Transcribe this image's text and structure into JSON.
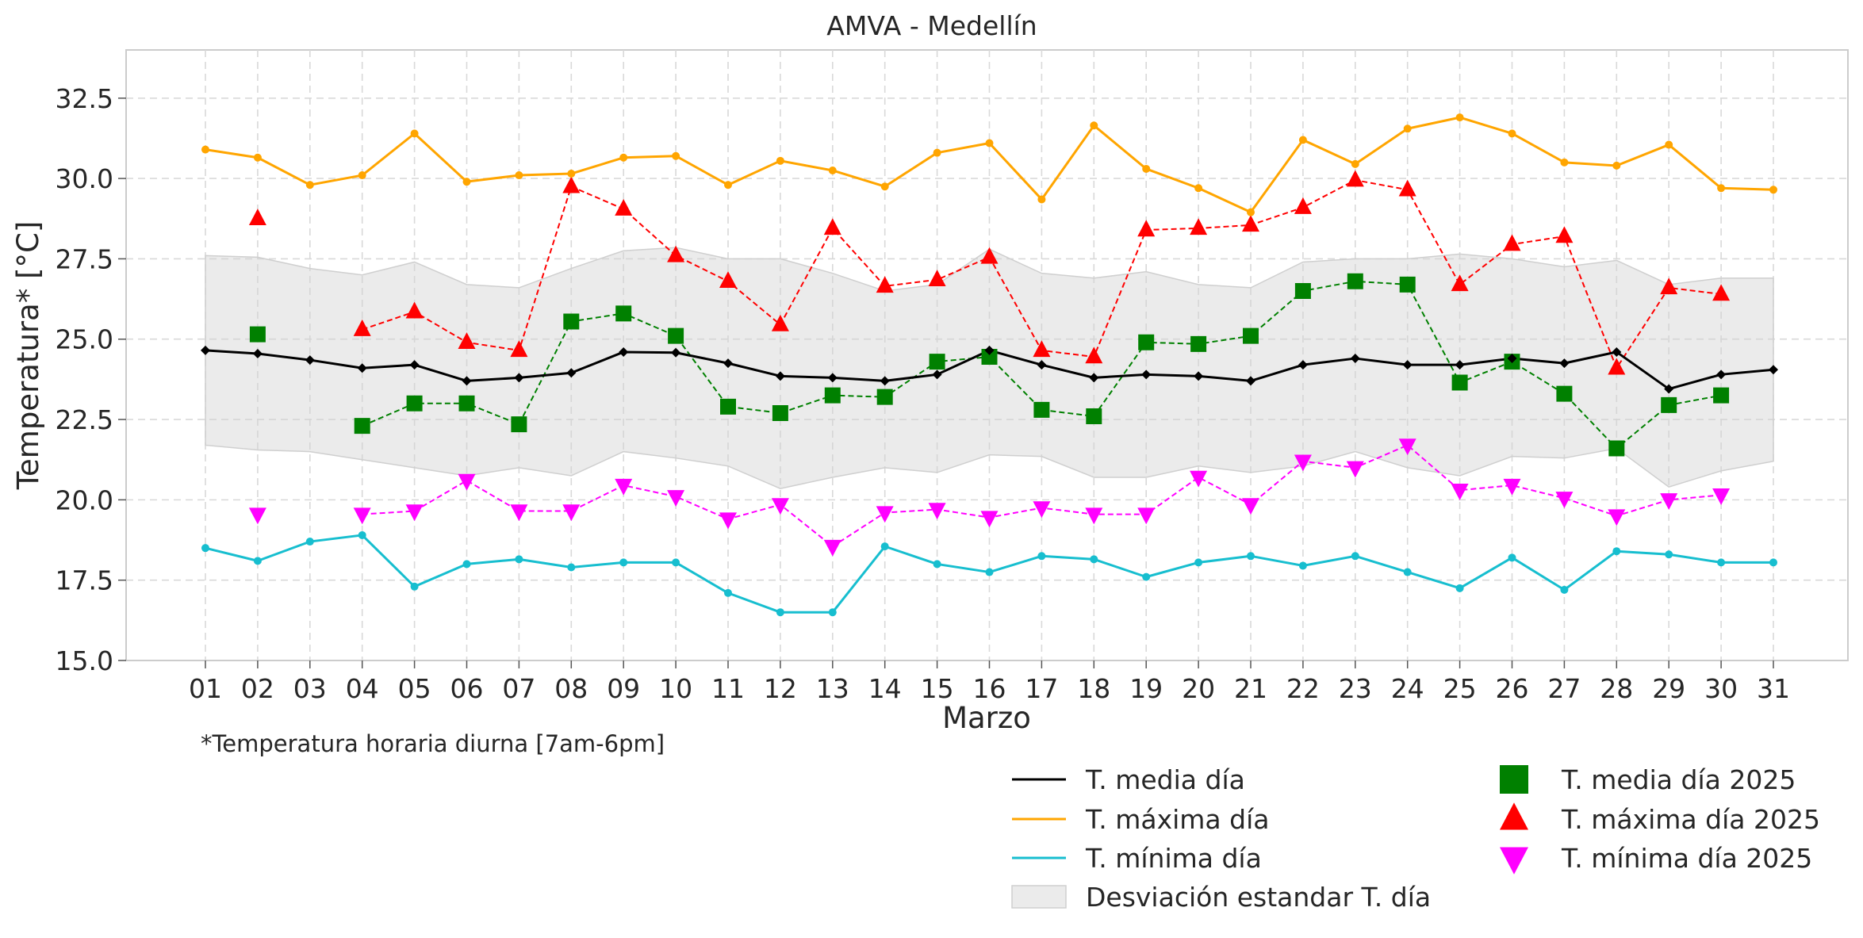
{
  "chart_data": {
    "type": "line",
    "title": "AMVA - Medellín",
    "xlabel": "Marzo",
    "ylabel": "Temperatura* [°C]",
    "footnote": "*Temperatura horaria diurna [7am-6pm]",
    "ylim": [
      15.0,
      34.0
    ],
    "yticks": [
      15.0,
      17.5,
      20.0,
      22.5,
      25.0,
      27.5,
      30.0,
      32.5
    ],
    "yticklabels": [
      "15.0",
      "17.5",
      "20.0",
      "22.5",
      "25.0",
      "27.5",
      "30.0",
      "32.5"
    ],
    "grid": true,
    "legend_position": "bottom-right, outside plot",
    "categories": [
      "01",
      "02",
      "03",
      "04",
      "05",
      "06",
      "07",
      "08",
      "09",
      "10",
      "11",
      "12",
      "13",
      "14",
      "15",
      "16",
      "17",
      "18",
      "19",
      "20",
      "21",
      "22",
      "23",
      "24",
      "25",
      "26",
      "27",
      "28",
      "29",
      "30",
      "31"
    ],
    "series": [
      {
        "key": "media",
        "name": "T. media día",
        "style": "solid-line",
        "marker": "diamond",
        "color": "#000000",
        "values": [
          24.65,
          24.55,
          24.35,
          24.1,
          24.2,
          23.7,
          23.8,
          23.95,
          24.6,
          24.58,
          24.25,
          23.85,
          23.8,
          23.7,
          23.9,
          24.65,
          24.2,
          23.8,
          23.9,
          23.85,
          23.7,
          24.2,
          24.4,
          24.2,
          24.2,
          24.4,
          24.25,
          24.6,
          23.45,
          23.9,
          24.05
        ]
      },
      {
        "key": "maxima",
        "name": "T. máxima día",
        "style": "solid-line",
        "marker": "circle",
        "color": "#ffa500",
        "values": [
          30.9,
          30.65,
          29.8,
          30.1,
          31.4,
          29.9,
          30.1,
          30.15,
          30.65,
          30.7,
          29.8,
          30.55,
          30.25,
          29.75,
          30.8,
          31.1,
          29.35,
          31.65,
          30.3,
          29.7,
          28.95,
          31.2,
          30.45,
          31.55,
          31.9,
          31.4,
          30.5,
          30.4,
          31.05,
          29.7,
          29.65
        ]
      },
      {
        "key": "minima",
        "name": "T. mínima día",
        "style": "solid-line",
        "marker": "circle",
        "color": "#17becf",
        "values": [
          18.5,
          18.1,
          18.7,
          18.9,
          17.3,
          18.0,
          18.15,
          17.9,
          18.05,
          18.05,
          17.1,
          16.5,
          16.5,
          18.55,
          18.0,
          17.75,
          18.25,
          18.15,
          17.6,
          18.05,
          18.25,
          17.95,
          18.25,
          17.75,
          17.25,
          18.2,
          17.2,
          18.4,
          18.3,
          18.05,
          18.05
        ]
      },
      {
        "key": "std",
        "name": "Desviación estandar T. día",
        "style": "band",
        "color": "#d3d3d3",
        "upper": [
          27.6,
          27.55,
          27.2,
          27.0,
          27.4,
          26.7,
          26.6,
          27.2,
          27.75,
          27.85,
          27.5,
          27.5,
          27.05,
          26.5,
          26.7,
          27.8,
          27.05,
          26.9,
          27.1,
          26.7,
          26.6,
          27.4,
          27.5,
          27.5,
          27.65,
          27.5,
          27.25,
          27.45,
          26.7,
          26.9,
          26.9
        ],
        "lower": [
          21.7,
          21.55,
          21.5,
          21.25,
          21.0,
          20.75,
          21.0,
          20.75,
          21.5,
          21.3,
          21.05,
          20.35,
          20.7,
          21.0,
          20.85,
          21.4,
          21.35,
          20.7,
          20.7,
          21.05,
          20.85,
          21.05,
          21.5,
          21.0,
          20.75,
          21.35,
          21.3,
          21.6,
          20.4,
          20.9,
          21.2
        ]
      },
      {
        "key": "media2025",
        "name": "T. media día 2025",
        "style": "dashed-line",
        "marker": "square",
        "color": "#008000",
        "values": [
          null,
          25.15,
          null,
          22.3,
          23.0,
          23.0,
          22.35,
          25.55,
          25.8,
          25.1,
          22.9,
          22.7,
          23.25,
          23.2,
          24.3,
          24.45,
          22.8,
          22.6,
          24.9,
          24.85,
          25.1,
          26.5,
          26.8,
          26.7,
          23.65,
          24.3,
          23.3,
          21.6,
          22.95,
          23.25,
          null
        ]
      },
      {
        "key": "maxima2025",
        "name": "T. máxima día 2025",
        "style": "dashed-line",
        "marker": "triangle-up",
        "color": "#ff0000",
        "values": [
          null,
          28.75,
          null,
          25.3,
          25.85,
          24.9,
          24.65,
          29.75,
          29.05,
          27.6,
          26.8,
          25.45,
          28.45,
          26.65,
          26.85,
          27.55,
          24.65,
          24.45,
          28.4,
          28.45,
          28.55,
          29.1,
          29.95,
          29.65,
          26.7,
          27.95,
          28.2,
          24.1,
          26.6,
          26.4,
          null
        ]
      },
      {
        "key": "minima2025",
        "name": "T. mínima día 2025",
        "style": "dashed-line",
        "marker": "triangle-down",
        "color": "#ff00ff",
        "values": [
          null,
          19.55,
          null,
          19.55,
          19.65,
          20.6,
          19.65,
          19.65,
          20.45,
          20.1,
          19.4,
          19.85,
          18.55,
          19.6,
          19.7,
          19.45,
          19.75,
          19.55,
          19.55,
          20.7,
          19.85,
          21.2,
          21.0,
          21.7,
          20.3,
          20.45,
          20.05,
          19.5,
          20.0,
          20.15,
          null
        ]
      }
    ]
  }
}
